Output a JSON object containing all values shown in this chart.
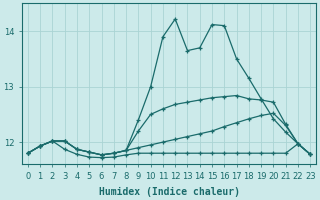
{
  "xlabel": "Humidex (Indice chaleur)",
  "background_color": "#cceaea",
  "grid_color": "#aad4d4",
  "line_color": "#1a6b6b",
  "xlim": [
    -0.5,
    23.5
  ],
  "ylim": [
    11.6,
    14.5
  ],
  "yticks": [
    12,
    13,
    14
  ],
  "xticks": [
    0,
    1,
    2,
    3,
    4,
    5,
    6,
    7,
    8,
    9,
    10,
    11,
    12,
    13,
    14,
    15,
    16,
    17,
    18,
    19,
    20,
    21,
    22,
    23
  ],
  "series": [
    [
      11.8,
      11.93,
      12.02,
      12.02,
      11.87,
      11.82,
      11.77,
      11.8,
      11.85,
      12.4,
      13.0,
      13.9,
      14.22,
      13.65,
      13.7,
      14.12,
      14.1,
      13.5,
      13.15,
      12.78,
      12.42,
      12.18,
      11.97,
      11.78
    ],
    [
      11.8,
      11.93,
      12.02,
      12.02,
      11.87,
      11.82,
      11.77,
      11.8,
      11.85,
      12.2,
      12.5,
      12.6,
      12.68,
      12.72,
      12.76,
      12.8,
      12.82,
      12.84,
      12.78,
      12.76,
      12.72,
      12.32,
      11.97,
      11.78
    ],
    [
      11.8,
      11.93,
      12.02,
      12.02,
      11.87,
      11.82,
      11.77,
      11.8,
      11.85,
      11.9,
      11.95,
      12.0,
      12.05,
      12.1,
      12.15,
      12.2,
      12.28,
      12.35,
      12.42,
      12.48,
      12.52,
      12.3,
      11.97,
      11.78
    ],
    [
      11.8,
      11.93,
      12.02,
      11.87,
      11.78,
      11.73,
      11.72,
      11.73,
      11.77,
      11.8,
      11.8,
      11.8,
      11.8,
      11.8,
      11.8,
      11.8,
      11.8,
      11.8,
      11.8,
      11.8,
      11.8,
      11.8,
      11.97,
      11.78
    ]
  ]
}
